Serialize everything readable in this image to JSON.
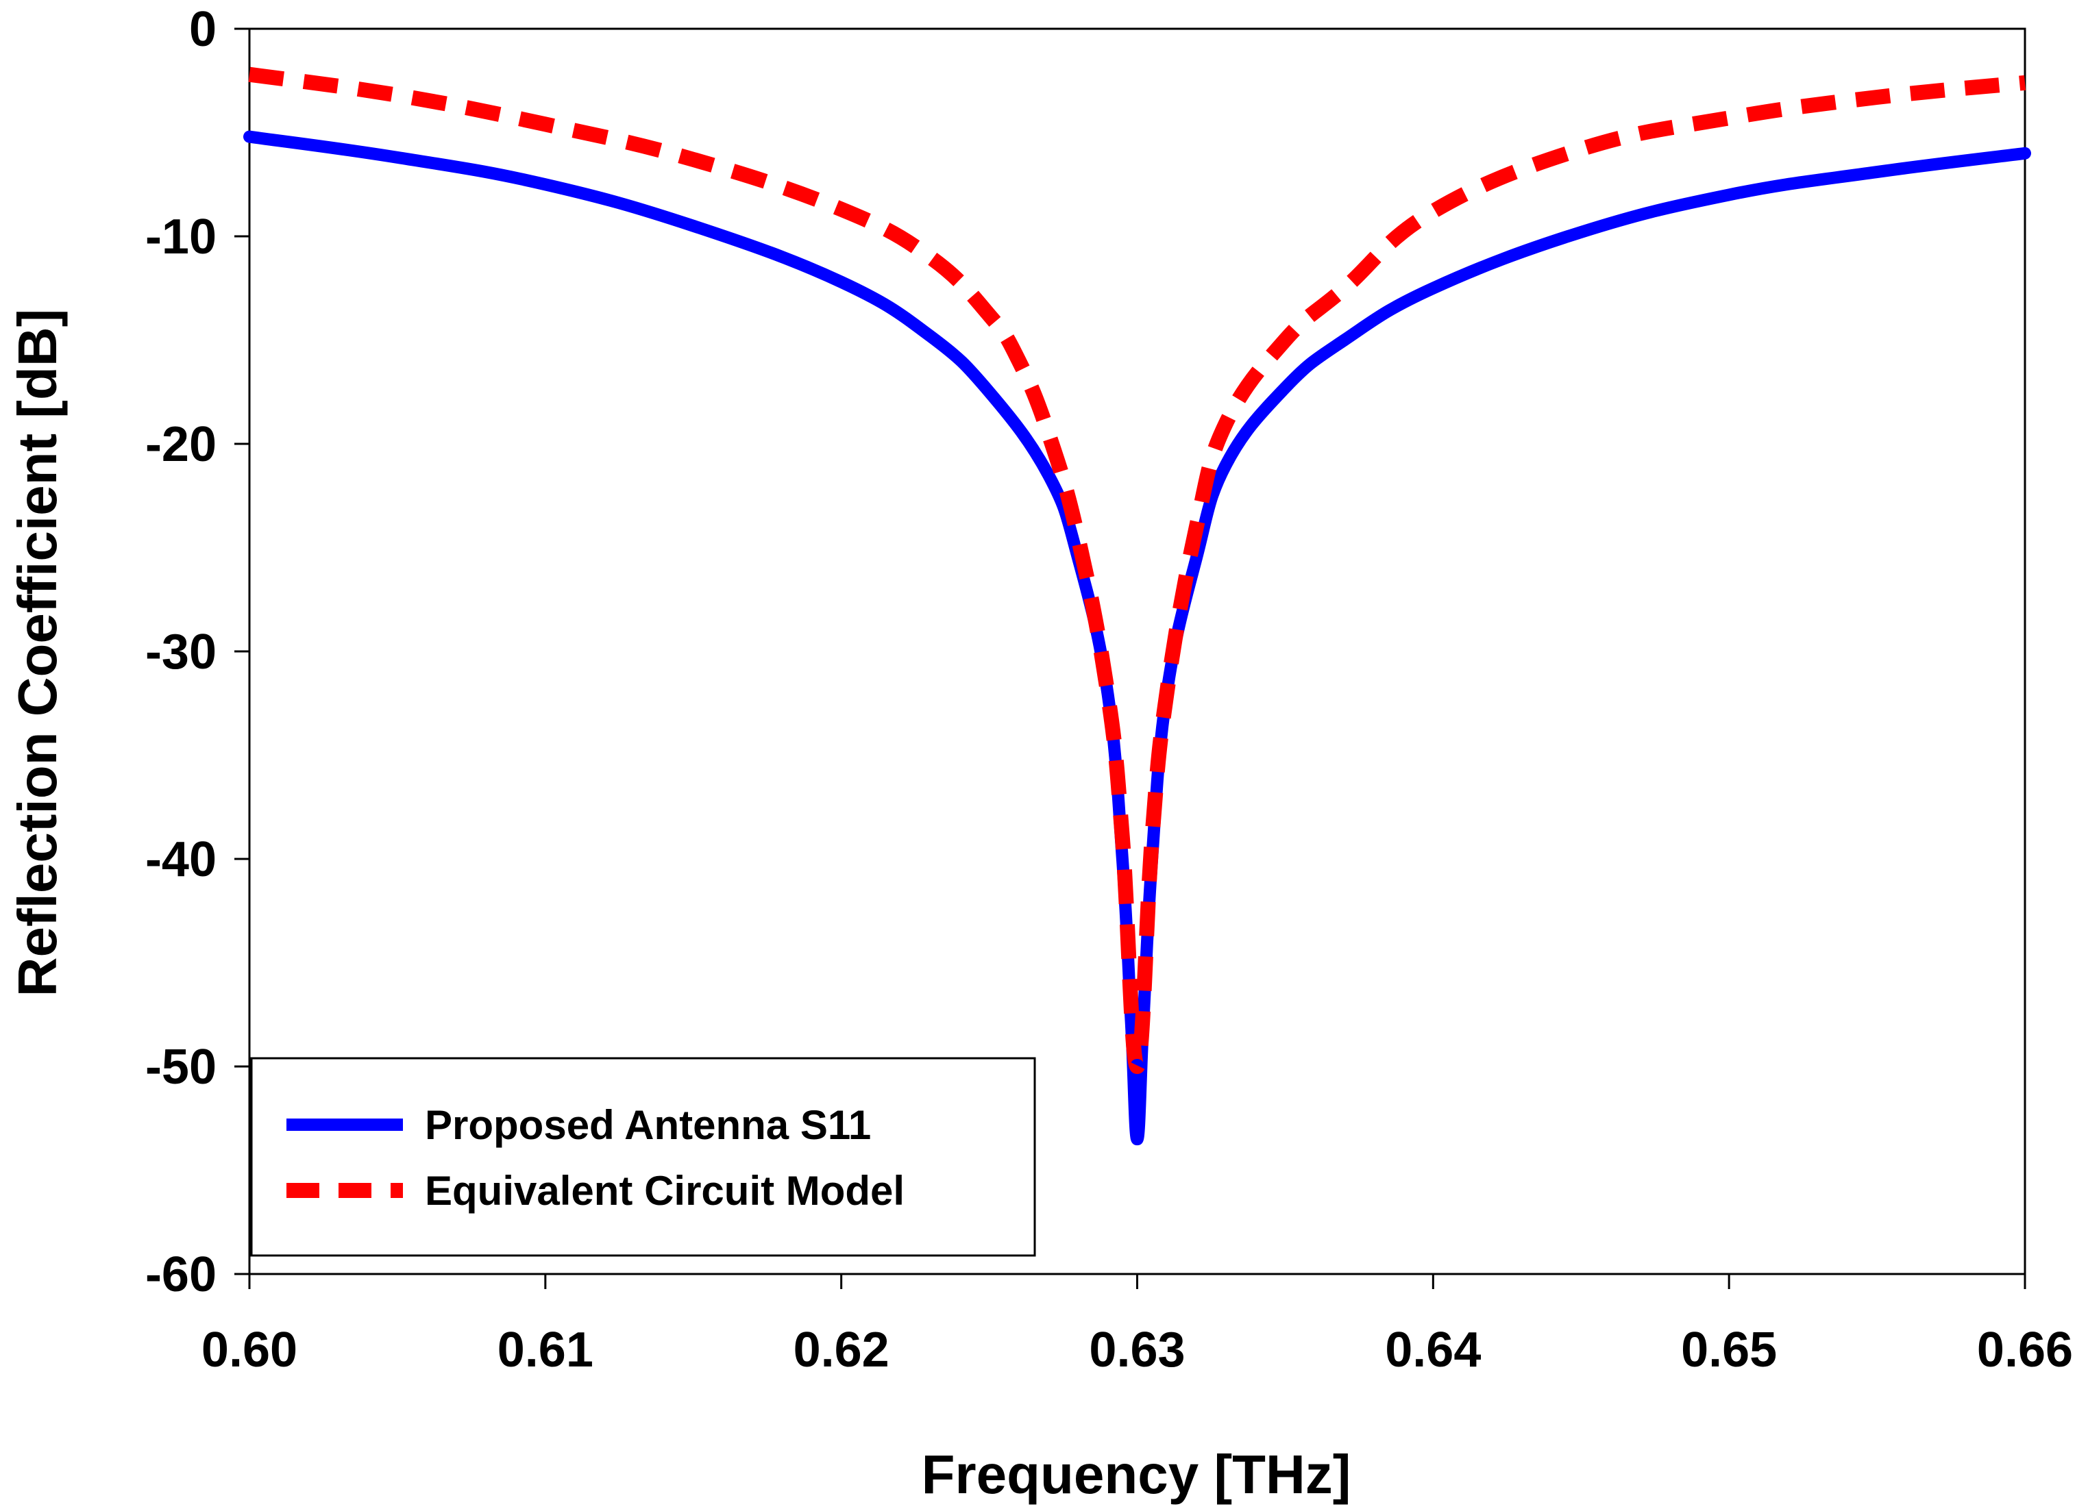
{
  "chart_data": {
    "type": "line",
    "title": "",
    "xlabel": "Frequency [THz]",
    "ylabel": "Reflection Coefficient [dB]",
    "xlim": [
      0.6,
      0.66
    ],
    "ylim": [
      -60,
      0
    ],
    "x_ticks": [
      "0.60",
      "0.61",
      "0.62",
      "0.63",
      "0.64",
      "0.65",
      "0.66"
    ],
    "y_ticks": [
      "0",
      "-10",
      "-20",
      "-30",
      "-40",
      "-50",
      "-60"
    ],
    "grid": false,
    "legend_position": "bottom-left",
    "series": [
      {
        "name": "Proposed Antenna S11",
        "color": "#0000ff",
        "style": "solid",
        "x": [
          0.6,
          0.605,
          0.61,
          0.615,
          0.62,
          0.623,
          0.625,
          0.627,
          0.628,
          0.629,
          0.6295,
          0.6298,
          0.63,
          0.6302,
          0.6305,
          0.631,
          0.632,
          0.633,
          0.635,
          0.637,
          0.64,
          0.645,
          0.65,
          0.655,
          0.66
        ],
        "y": [
          -5.2,
          -6.2,
          -7.5,
          -9.5,
          -12.2,
          -14.8,
          -17.5,
          -21.5,
          -25.5,
          -32.0,
          -40.0,
          -48.0,
          -53.5,
          -48.0,
          -40.0,
          -32.0,
          -25.5,
          -21.0,
          -17.3,
          -15.0,
          -12.5,
          -9.8,
          -8.0,
          -6.9,
          -6.0
        ]
      },
      {
        "name": "Equivalent Circuit Model",
        "color": "#ff0000",
        "style": "dashed",
        "x": [
          0.6,
          0.605,
          0.61,
          0.615,
          0.62,
          0.623,
          0.625,
          0.626,
          0.627,
          0.628,
          0.629,
          0.6295,
          0.63,
          0.6305,
          0.631,
          0.632,
          0.633,
          0.635,
          0.637,
          0.64,
          0.645,
          0.65,
          0.655,
          0.66
        ],
        "y": [
          -2.2,
          -3.2,
          -4.6,
          -6.3,
          -8.7,
          -11.0,
          -13.8,
          -16.0,
          -19.5,
          -24.5,
          -32.0,
          -39.0,
          -50.0,
          -39.0,
          -32.0,
          -24.0,
          -19.0,
          -15.0,
          -12.5,
          -8.8,
          -5.8,
          -4.3,
          -3.3,
          -2.6
        ]
      }
    ]
  }
}
